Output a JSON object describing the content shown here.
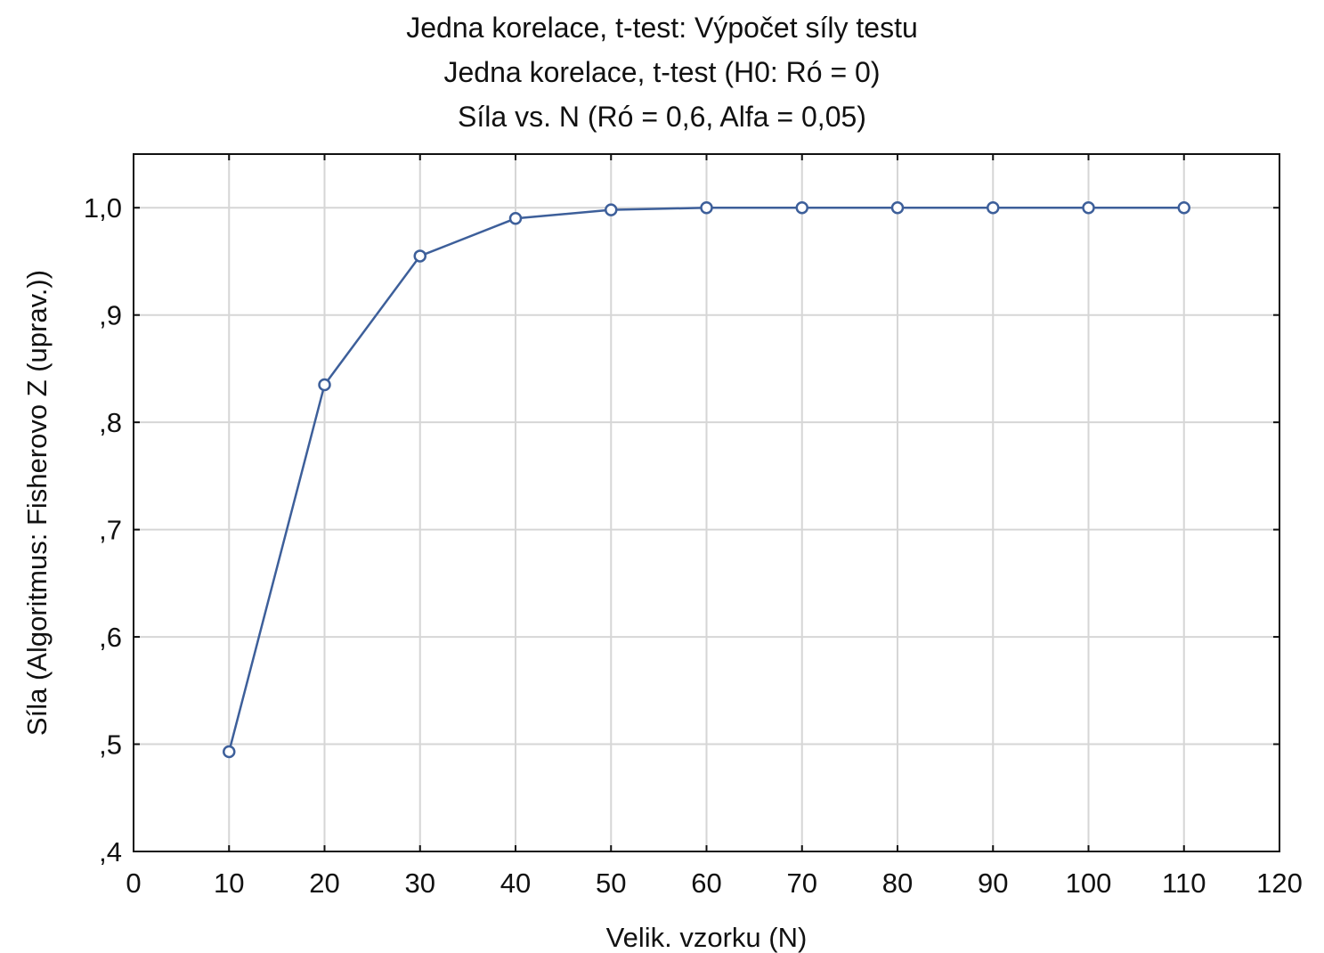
{
  "chart_data": {
    "type": "line",
    "title": "Jedna korelace, t-test: Výpočet síly testu",
    "subtitle": "Jedna korelace, t-test (H0:  Ró =  0)",
    "subtitle2": "Síla vs. N (Ró = 0,6,  Alfa = 0,05)",
    "xlabel": "Velik. vzorku (N)",
    "ylabel": "Síla (Algoritmus: Fisherovo Z (uprav.))",
    "xlim": [
      0,
      120
    ],
    "ylim": [
      0.4,
      1.05
    ],
    "xticks": [
      0,
      10,
      20,
      30,
      40,
      50,
      60,
      70,
      80,
      90,
      100,
      110,
      120
    ],
    "xtick_labels": [
      "0",
      "10",
      "20",
      "30",
      "40",
      "50",
      "60",
      "70",
      "80",
      "90",
      "100",
      "110",
      "120"
    ],
    "yticks": [
      0.4,
      0.5,
      0.6,
      0.7,
      0.8,
      0.9,
      1.0
    ],
    "ytick_labels": [
      ",4",
      ",5",
      ",6",
      ",7",
      ",8",
      ",9",
      "1,0"
    ],
    "grid": true,
    "series": [
      {
        "x": [
          10,
          20,
          30,
          40,
          50,
          60,
          70,
          80,
          90,
          100,
          110
        ],
        "values": [
          0.493,
          0.835,
          0.955,
          0.99,
          0.998,
          1.0,
          1.0,
          1.0,
          1.0,
          1.0,
          1.0
        ]
      }
    ],
    "line_color": "#3d5f9a",
    "grid_color": "#d6d6d6"
  }
}
